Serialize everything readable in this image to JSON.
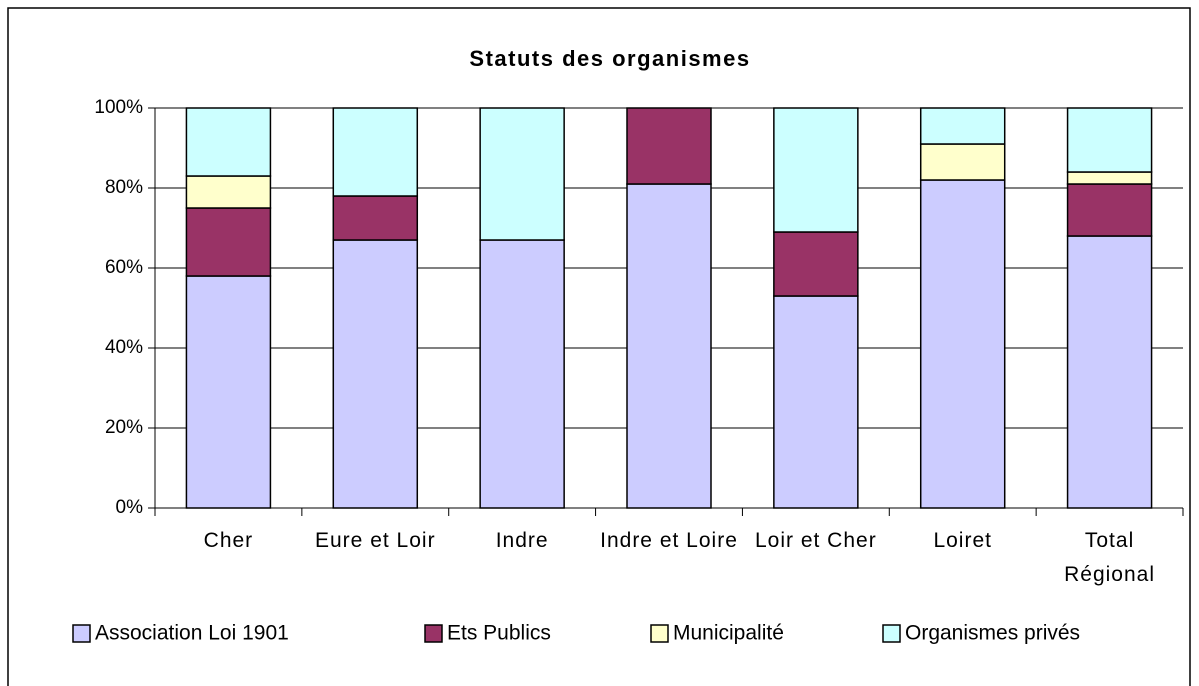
{
  "chart_data": {
    "type": "stacked_bar",
    "title": "Statuts des organismes",
    "categories": [
      "Cher",
      "Eure et Loir",
      "Indre",
      "Indre et Loire",
      "Loir et Cher",
      "Loiret",
      "Total Régional"
    ],
    "series": [
      {
        "name": "Association Loi 1901",
        "color": "#ccccff",
        "values": [
          58,
          67,
          67,
          81,
          53,
          82,
          68
        ]
      },
      {
        "name": "Ets Publics",
        "color": "#993366",
        "values": [
          17,
          11,
          0,
          19,
          16,
          0,
          13
        ]
      },
      {
        "name": "Municipalité",
        "color": "#ffffcc",
        "values": [
          8,
          0,
          0,
          0,
          0,
          9,
          3
        ]
      },
      {
        "name": "Organismes privés",
        "color": "#ccffff",
        "values": [
          17,
          22,
          33,
          0,
          31,
          9,
          16
        ]
      }
    ],
    "ylim": [
      0,
      100
    ],
    "yticks": [
      {
        "value": 0,
        "label": "0%"
      },
      {
        "value": 20,
        "label": "20%"
      },
      {
        "value": 40,
        "label": "40%"
      },
      {
        "value": 60,
        "label": "60%"
      },
      {
        "value": 80,
        "label": "80%"
      },
      {
        "value": 100,
        "label": "100%"
      }
    ],
    "grid": true,
    "legend": "bottom"
  }
}
